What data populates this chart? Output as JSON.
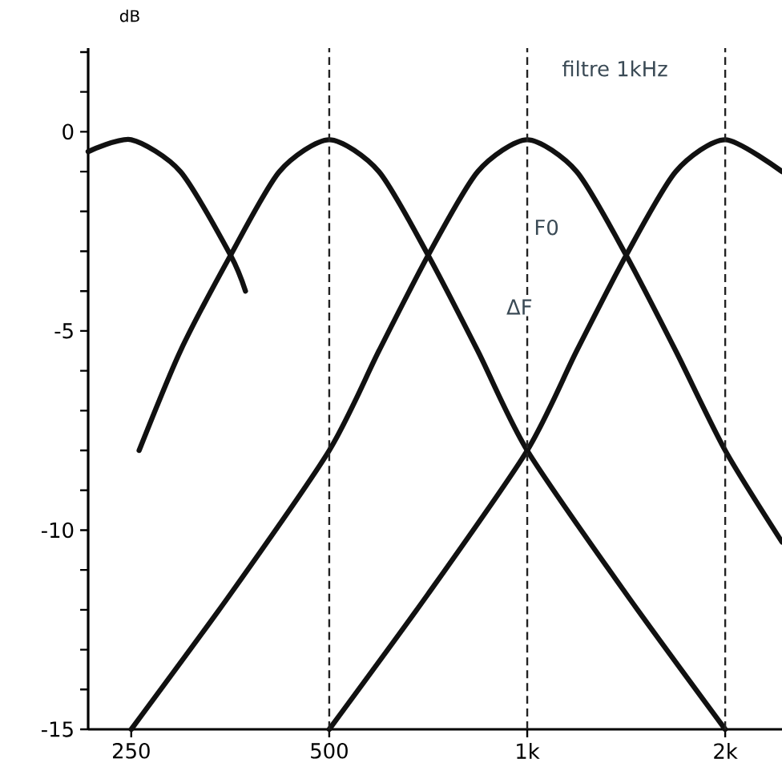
{
  "chart_data": {
    "type": "line",
    "ylabel": "dB",
    "log": "x",
    "xlim": [
      215,
      2440
    ],
    "ylim": [
      -15,
      2.1
    ],
    "xticks": [
      {
        "value": 250,
        "label": "250"
      },
      {
        "value": 500,
        "label": "500"
      },
      {
        "value": 1000,
        "label": "1k"
      },
      {
        "value": 2000,
        "label": "2k"
      }
    ],
    "yticks": [
      0,
      {
        "value": -1,
        "label": null
      },
      {
        "value": -2,
        "label": null
      },
      {
        "value": -3,
        "label": null
      },
      {
        "value": -4,
        "label": null
      },
      -5,
      {
        "value": -6,
        "label": null
      },
      {
        "value": -7,
        "label": null
      },
      {
        "value": -8,
        "label": null
      },
      {
        "value": -9,
        "label": null
      },
      -10,
      {
        "value": -11,
        "label": null
      },
      {
        "value": -12,
        "label": null
      },
      {
        "value": -13,
        "label": null
      },
      {
        "value": -14,
        "label": null
      },
      -15,
      {
        "value": 1,
        "label": null
      },
      {
        "value": 2,
        "label": null
      }
    ],
    "grid": false,
    "marker": "none",
    "line_style": "solid",
    "series": [
      {
        "color": "#111111",
        "x": [
          215,
          250,
          297,
          354,
          373
        ],
        "values": [
          -0.5,
          -0.2,
          -1.0,
          -3.1,
          -4.0
        ]
      },
      {
        "color": "#111111",
        "x": [
          257,
          297,
          354,
          420,
          500,
          595,
          707,
          841,
          1000,
          1414,
          2000
        ],
        "values": [
          -8,
          -5.5,
          -3.1,
          -1.0,
          -0.2,
          -1.0,
          -3.1,
          -5.5,
          -8,
          -11.6,
          -15
        ]
      },
      {
        "color": "#111111",
        "x": [
          250,
          354,
          500,
          595,
          707,
          841,
          1000,
          1189,
          1414,
          1682,
          2000,
          2440
        ],
        "values": [
          -15,
          -11.6,
          -8,
          -5.5,
          -3.1,
          -1.0,
          -0.2,
          -1.0,
          -3.1,
          -5.5,
          -8,
          -10.3
        ]
      },
      {
        "color": "#111111",
        "x": [
          500,
          707,
          1000,
          1189,
          1414,
          1682,
          2000,
          2440
        ],
        "values": [
          -15,
          -11.6,
          -8,
          -5.5,
          -3.1,
          -1.0,
          -0.2,
          -1.0
        ]
      }
    ],
    "ref_lines": [
      {
        "axis": "x",
        "value": 500,
        "line_style": "dashed"
      },
      {
        "axis": "x",
        "value": 1000,
        "line_style": "dashed"
      },
      {
        "axis": "x",
        "value": 2000,
        "line_style": "dashed"
      }
    ],
    "annotations": [
      "filtre 1kHz",
      {
        "text": "F0",
        "x": 1017,
        "y": -2.4
      },
      "ΔF"
    ]
  }
}
